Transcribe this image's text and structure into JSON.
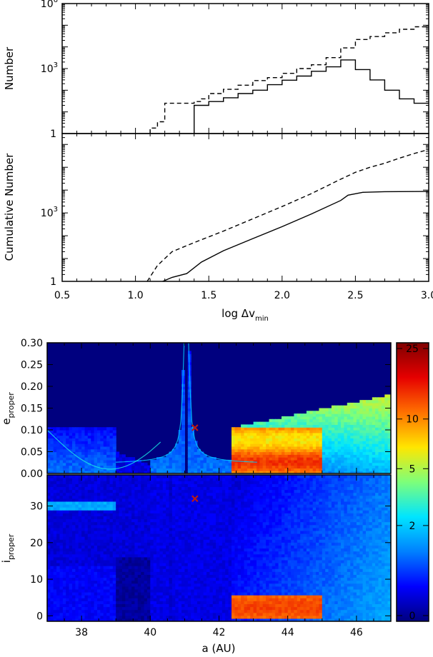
{
  "colors": {
    "axis": "#000000",
    "marker": "#b81a14",
    "colormap": [
      "#00007f",
      "#0000ff",
      "#0080ff",
      "#00e5ff",
      "#7dff7a",
      "#ffe600",
      "#ff7100",
      "#e60000",
      "#7f0000"
    ]
  },
  "chart_data": [
    {
      "id": "differential",
      "type": "line",
      "title": "",
      "xlabel": "",
      "ylabel": "Number",
      "yscale": "log",
      "xlim": [
        0.5,
        3.0
      ],
      "ylim": [
        1,
        1000000
      ],
      "yticks": [
        {
          "value": 1,
          "label": "1"
        },
        {
          "value": 1000,
          "base": "10",
          "exp": "3"
        },
        {
          "value": 1000000,
          "base": "10",
          "exp": "6"
        }
      ],
      "step_edges": [
        1.1,
        1.15,
        1.2,
        1.25,
        1.3,
        1.35,
        1.4,
        1.45,
        1.5,
        1.55,
        1.6,
        1.65,
        1.7,
        1.75,
        1.8,
        1.85,
        1.9,
        1.95,
        2.0,
        2.05,
        2.1,
        2.15,
        2.2,
        2.25,
        2.3,
        2.35,
        2.4,
        2.45,
        2.5,
        2.55,
        2.6,
        2.65,
        2.7,
        2.75,
        2.8,
        2.85,
        2.9,
        2.95,
        3.0
      ],
      "series": [
        {
          "name": "dashed",
          "style": "dashed",
          "values": [
            1.8,
            3.5,
            25,
            25,
            25,
            25,
            30,
            40,
            70,
            70,
            110,
            110,
            170,
            170,
            280,
            280,
            380,
            380,
            600,
            600,
            1000,
            1000,
            1500,
            1500,
            3200,
            3200,
            9000,
            9000,
            22000,
            22000,
            30000,
            30000,
            45000,
            45000,
            65000,
            65000,
            85000,
            85000
          ]
        },
        {
          "name": "solid",
          "style": "solid",
          "values": [
            null,
            null,
            null,
            null,
            null,
            null,
            20,
            20,
            30,
            30,
            45,
            45,
            70,
            70,
            100,
            100,
            180,
            180,
            290,
            290,
            450,
            450,
            750,
            750,
            1200,
            1200,
            2500,
            2500,
            900,
            900,
            300,
            300,
            100,
            100,
            40,
            40,
            25,
            25
          ]
        }
      ]
    },
    {
      "id": "cumulative",
      "type": "line",
      "title": "",
      "xlabel": "log Δv_min",
      "xlabel_main": "log  Δv",
      "xlabel_sub": "min",
      "ylabel": "Cumulative Number",
      "yscale": "log",
      "xlim": [
        0.5,
        3.0
      ],
      "ylim": [
        1,
        3000000
      ],
      "xticks": [
        {
          "value": 0.5,
          "label": "0.5"
        },
        {
          "value": 1.0,
          "label": "1.0"
        },
        {
          "value": 1.5,
          "label": "1.5"
        },
        {
          "value": 2.0,
          "label": "2.0"
        },
        {
          "value": 2.5,
          "label": "2.5"
        },
        {
          "value": 3.0,
          "label": "3.0"
        }
      ],
      "yticks": [
        {
          "value": 1,
          "label": "1"
        },
        {
          "value": 1000,
          "base": "10",
          "exp": "3"
        }
      ],
      "series": [
        {
          "name": "dashed",
          "style": "dashed",
          "x": [
            1.08,
            1.15,
            1.25,
            1.4,
            1.6,
            1.8,
            2.0,
            2.2,
            2.4,
            2.5,
            2.6,
            2.7,
            2.8,
            2.9,
            3.0
          ],
          "y": [
            1,
            5,
            20,
            50,
            160,
            550,
            1900,
            7000,
            30000,
            60000,
            100000,
            150000,
            250000,
            400000,
            600000
          ]
        },
        {
          "name": "solid",
          "style": "solid",
          "x": [
            1.1,
            1.15,
            1.25,
            1.35,
            1.45,
            1.6,
            1.8,
            2.0,
            2.2,
            2.4,
            2.45,
            2.55,
            2.7,
            2.8,
            3.0
          ],
          "y": [
            0.6,
            0.8,
            1.5,
            2.2,
            7,
            22,
            75,
            250,
            900,
            3500,
            6000,
            8000,
            8500,
            8600,
            8700
          ]
        }
      ]
    },
    {
      "id": "e-proper",
      "type": "heatmap",
      "title": "",
      "xlabel": "",
      "ylabel": "e_proper",
      "ylabel_main": "e",
      "ylabel_sub": "proper",
      "xlim": [
        37.0,
        47.0
      ],
      "ylim": [
        0.0,
        0.3
      ],
      "yticks": [
        {
          "value": 0.0,
          "label": "0.00"
        },
        {
          "value": 0.05,
          "label": "0.05"
        },
        {
          "value": 0.1,
          "label": "0.10"
        },
        {
          "value": 0.15,
          "label": "0.15"
        },
        {
          "value": 0.2,
          "label": "0.20"
        },
        {
          "value": 0.25,
          "label": "0.25"
        },
        {
          "value": 0.3,
          "label": "0.30"
        }
      ],
      "marker": {
        "a": 41.3,
        "value": 0.105,
        "symbol": "x"
      },
      "features": {
        "resonance_center": 41.05,
        "resonance_halfwidth": 0.28,
        "dense_box": {
          "a": [
            42.4,
            45.0
          ],
          "value": [
            0.0,
            0.105
          ]
        },
        "edges_a": [
          39.0,
          40.0,
          42.4,
          45.0
        ]
      }
    },
    {
      "id": "i-proper",
      "type": "heatmap",
      "title": "",
      "xlabel": "a (AU)",
      "ylabel": "i_proper",
      "ylabel_main": "i",
      "ylabel_sub": "proper",
      "xlim": [
        37.0,
        47.0
      ],
      "ylim": [
        -1.5,
        38.5
      ],
      "xticks": [
        {
          "value": 38,
          "label": "38"
        },
        {
          "value": 40,
          "label": "40"
        },
        {
          "value": 42,
          "label": "42"
        },
        {
          "value": 44,
          "label": "44"
        },
        {
          "value": 46,
          "label": "46"
        }
      ],
      "yticks": [
        {
          "value": 0,
          "label": "0"
        },
        {
          "value": 10,
          "label": "10"
        },
        {
          "value": 20,
          "label": "20"
        },
        {
          "value": 30,
          "label": "30"
        }
      ],
      "marker": {
        "a": 41.3,
        "value": 32.0,
        "symbol": "x"
      },
      "features": {
        "dense_box": {
          "a": [
            42.4,
            45.0
          ],
          "value": [
            -0.5,
            6.0
          ]
        },
        "edges_a": [
          39.0,
          40.0,
          42.4,
          45.0
        ]
      }
    },
    {
      "id": "colorbar",
      "type": "heatmap",
      "title": "",
      "xlabel": "",
      "ylabel": "",
      "vlim": [
        0,
        25
      ],
      "ticks": [
        {
          "value": 0,
          "label": "0"
        },
        {
          "value": 2,
          "label": "2"
        },
        {
          "value": 5,
          "label": "5"
        },
        {
          "value": 10,
          "label": "10"
        },
        {
          "value": 25,
          "label": "25"
        }
      ]
    }
  ]
}
